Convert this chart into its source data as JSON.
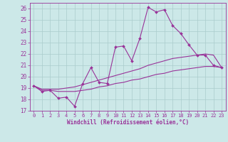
{
  "xlabel": "Windchill (Refroidissement éolien,°C)",
  "xlim": [
    -0.5,
    23.5
  ],
  "ylim": [
    17,
    26.5
  ],
  "yticks": [
    17,
    18,
    19,
    20,
    21,
    22,
    23,
    24,
    25,
    26
  ],
  "xticks": [
    0,
    1,
    2,
    3,
    4,
    5,
    6,
    7,
    8,
    9,
    10,
    11,
    12,
    13,
    14,
    15,
    16,
    17,
    18,
    19,
    20,
    21,
    22,
    23
  ],
  "background_color": "#cce8e8",
  "line_color": "#993399",
  "grid_color": "#aacccc",
  "series1_x": [
    0,
    1,
    2,
    3,
    4,
    5,
    6,
    7,
    8,
    9,
    10,
    11,
    12,
    13,
    14,
    15,
    16,
    17,
    18,
    19,
    20,
    21,
    22,
    23
  ],
  "series1_y": [
    19.2,
    18.7,
    18.8,
    18.1,
    18.2,
    17.4,
    19.4,
    20.8,
    19.5,
    19.4,
    22.6,
    22.7,
    21.4,
    23.4,
    26.1,
    25.7,
    25.9,
    24.5,
    23.8,
    22.8,
    21.9,
    21.9,
    21.0,
    20.8
  ],
  "series2_x": [
    0,
    1,
    2,
    3,
    4,
    5,
    6,
    7,
    8,
    9,
    10,
    11,
    12,
    13,
    14,
    15,
    16,
    17,
    18,
    19,
    20,
    21,
    22,
    23
  ],
  "series2_y": [
    19.2,
    18.9,
    18.9,
    18.9,
    19.0,
    19.1,
    19.3,
    19.5,
    19.7,
    19.9,
    20.1,
    20.3,
    20.5,
    20.7,
    21.0,
    21.2,
    21.4,
    21.6,
    21.7,
    21.8,
    21.9,
    22.0,
    21.9,
    20.8
  ],
  "series3_x": [
    0,
    1,
    2,
    3,
    4,
    5,
    6,
    7,
    8,
    9,
    10,
    11,
    12,
    13,
    14,
    15,
    16,
    17,
    18,
    19,
    20,
    21,
    22,
    23
  ],
  "series3_y": [
    19.2,
    18.8,
    18.8,
    18.7,
    18.7,
    18.7,
    18.8,
    18.9,
    19.1,
    19.2,
    19.4,
    19.5,
    19.7,
    19.8,
    20.0,
    20.2,
    20.3,
    20.5,
    20.6,
    20.7,
    20.8,
    20.9,
    20.9,
    20.8
  ]
}
